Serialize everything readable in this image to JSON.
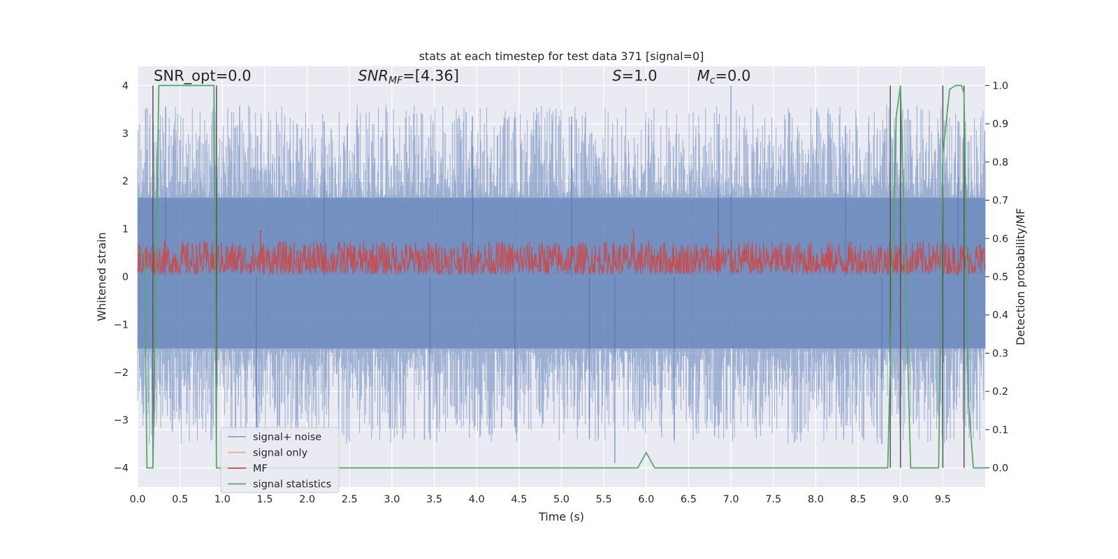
{
  "chart_data": {
    "type": "line",
    "title": "stats at each timestep for test data 371 [signal=0]",
    "xlabel": "Time (s)",
    "ylabel": "Whitened strain",
    "y2label": "Detection probability/MF",
    "xlim": [
      0.0,
      10.0
    ],
    "ylim": [
      -4.4,
      4.4
    ],
    "y2lim": [
      -0.05,
      1.05
    ],
    "x_ticks": [
      0.0,
      0.5,
      1.0,
      1.5,
      2.0,
      2.5,
      3.0,
      3.5,
      4.0,
      4.5,
      5.0,
      5.5,
      6.0,
      6.5,
      7.0,
      7.5,
      8.0,
      8.5,
      9.0,
      9.5
    ],
    "x_tick_labels": [
      "0.0",
      "0.5",
      "1.0",
      "1.5",
      "2.0",
      "2.5",
      "3.0",
      "3.5",
      "4.0",
      "4.5",
      "5.0",
      "5.5",
      "6.0",
      "6.5",
      "7.0",
      "7.5",
      "8.0",
      "8.5",
      "9.0",
      "9.5"
    ],
    "y_ticks": [
      4,
      3,
      2,
      1,
      0,
      -1,
      -2,
      -3,
      -4
    ],
    "y_tick_labels": [
      "4",
      "3",
      "2",
      "1",
      "0",
      "−1",
      "−2",
      "−3",
      "−4"
    ],
    "y2_ticks": [
      1.0,
      0.9,
      0.8,
      0.7,
      0.6,
      0.5,
      0.4,
      0.3,
      0.2,
      0.1,
      0.0
    ],
    "y2_tick_labels": [
      "1.0",
      "0.9",
      "0.8",
      "0.7",
      "0.6",
      "0.5",
      "0.4",
      "0.3",
      "0.2",
      "0.1",
      "0.0"
    ],
    "grid": true,
    "legend_placement": "lower-left",
    "annotations": [
      {
        "label": "SNR_opt=0.0",
        "x": 0.19,
        "y": 4.1
      },
      {
        "label": "SNR",
        "sub": "MF",
        "suffix": "=[4.36]",
        "x": 2.6,
        "y": 4.1
      },
      {
        "label": "S",
        "sub": "",
        "suffix": "=1.0",
        "x": 5.6,
        "y": 4.1
      },
      {
        "label": "M",
        "sub": "c",
        "suffix": "=0.0",
        "x": 6.6,
        "y": 4.1
      }
    ],
    "series": [
      {
        "name": "signal+ noise",
        "color": "#4c72b0",
        "axis": "left",
        "style": "noise",
        "spread_y": [
          -1.5,
          1.65
        ],
        "outer_envelope_y": [
          -3.5,
          3.6
        ],
        "outlier_peaks": [
          [
            0.33,
            3.55
          ],
          [
            2.2,
            3.25
          ],
          [
            3.95,
            3.35
          ],
          [
            5.12,
            3.35
          ],
          [
            6.85,
            3.2
          ],
          [
            7.0,
            4.0
          ],
          [
            8.35,
            3.15
          ],
          [
            9.68,
            3.25
          ],
          [
            1.4,
            -3.2
          ],
          [
            3.45,
            -3.4
          ],
          [
            4.45,
            -3.15
          ],
          [
            5.33,
            -3.4
          ],
          [
            5.63,
            -3.9
          ],
          [
            6.33,
            -3.4
          ],
          [
            8.78,
            -3.5
          ]
        ]
      },
      {
        "name": "signal only",
        "color": "#dd8452",
        "axis": "left",
        "values": []
      },
      {
        "name": "MF",
        "color": "#c44e52",
        "axis": "left",
        "style": "noise",
        "spread_y": [
          0.05,
          0.75
        ],
        "outlier_peaks": [
          [
            1.45,
            0.98
          ],
          [
            5.85,
            1.0
          ],
          [
            6.85,
            0.9
          ]
        ]
      },
      {
        "name": "signal statistics",
        "color": "#55a868",
        "axis": "right",
        "x": [
          0.0,
          0.08,
          0.11,
          0.18,
          0.25,
          0.9,
          0.93,
          1.0,
          5.9,
          6.0,
          6.1,
          8.85,
          8.95,
          9.0,
          9.12,
          9.45,
          9.5,
          9.58,
          9.65,
          9.72,
          9.75,
          9.8,
          9.86,
          10.0
        ],
        "values": [
          0.57,
          0.56,
          0.0,
          0.0,
          1.0,
          1.0,
          0.0,
          0.0,
          0.0,
          0.04,
          0.0,
          0.0,
          0.92,
          1.0,
          0.0,
          0.0,
          0.82,
          0.99,
          1.0,
          1.0,
          0.98,
          0.18,
          0.0,
          0.0
        ]
      }
    ],
    "vertical_lines_x": [
      0.18,
      0.93,
      8.88,
      9.0,
      9.5,
      9.75
    ]
  }
}
